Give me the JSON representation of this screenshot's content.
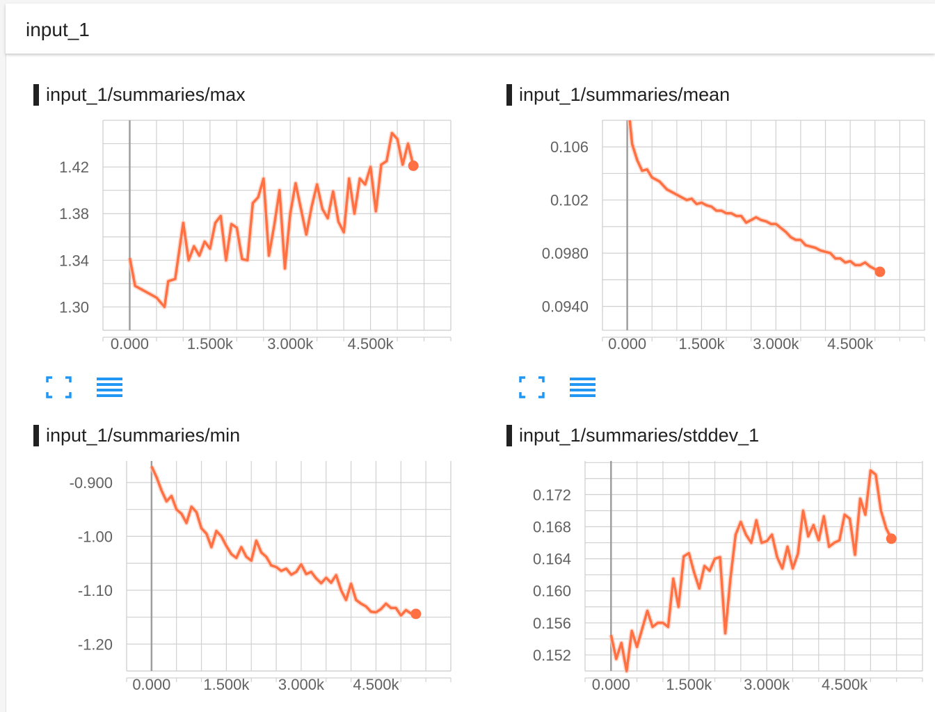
{
  "header": {
    "title": "input_1"
  },
  "colors": {
    "line": "#ff7043",
    "line_raw": "#ffccbc",
    "grid": "#d0d0d0",
    "axis": "#9e9e9e",
    "tool": "#2196f3"
  },
  "tools": {
    "fit_icon": "fit-domain-icon",
    "log_icon": "toggle-log-scale-icon"
  },
  "charts": [
    {
      "title": "input_1/summaries/max",
      "chart_data": {
        "type": "line",
        "series": [
          {
            "values": [
              [
                0,
                1.342
              ],
              [
                100,
                1.318
              ],
              [
                500,
                1.308
              ],
              [
                650,
                1.3
              ],
              [
                720,
                1.322
              ],
              [
                850,
                1.324
              ],
              [
                1000,
                1.372
              ],
              [
                1100,
                1.34
              ],
              [
                1200,
                1.352
              ],
              [
                1300,
                1.344
              ],
              [
                1400,
                1.356
              ],
              [
                1500,
                1.35
              ],
              [
                1600,
                1.372
              ],
              [
                1700,
                1.378
              ],
              [
                1800,
                1.34
              ],
              [
                1900,
                1.371
              ],
              [
                2000,
                1.368
              ],
              [
                2100,
                1.341
              ],
              [
                2200,
                1.34
              ],
              [
                2300,
                1.389
              ],
              [
                2400,
                1.394
              ],
              [
                2500,
                1.41
              ],
              [
                2600,
                1.344
              ],
              [
                2700,
                1.37
              ],
              [
                2800,
                1.4
              ],
              [
                2900,
                1.333
              ],
              [
                3000,
                1.38
              ],
              [
                3100,
                1.406
              ],
              [
                3200,
                1.384
              ],
              [
                3300,
                1.362
              ],
              [
                3400,
                1.386
              ],
              [
                3500,
                1.405
              ],
              [
                3600,
                1.384
              ],
              [
                3700,
                1.376
              ],
              [
                3800,
                1.399
              ],
              [
                3900,
                1.373
              ],
              [
                4000,
                1.364
              ],
              [
                4100,
                1.41
              ],
              [
                4200,
                1.38
              ],
              [
                4300,
                1.41
              ],
              [
                4400,
                1.405
              ],
              [
                4500,
                1.42
              ],
              [
                4600,
                1.382
              ],
              [
                4700,
                1.422
              ],
              [
                4800,
                1.425
              ],
              [
                4900,
                1.449
              ],
              [
                5000,
                1.444
              ],
              [
                5100,
                1.422
              ],
              [
                5200,
                1.44
              ],
              [
                5300,
                1.421
              ]
            ]
          }
        ],
        "xticks": [
          "0.000",
          "1.500k",
          "3.000k",
          "4.500k"
        ],
        "yticks": [
          "1.42",
          "1.38",
          "1.34",
          "1.30"
        ],
        "xlim": [
          -500,
          6000
        ],
        "ylim": [
          1.28,
          1.46
        ]
      }
    },
    {
      "title": "input_1/summaries/mean",
      "chart_data": {
        "type": "line",
        "series": [
          {
            "values": [
              [
                50,
                0.108
              ],
              [
                100,
                0.1062
              ],
              [
                200,
                0.105
              ],
              [
                300,
                0.1042
              ],
              [
                400,
                0.1043
              ],
              [
                500,
                0.1037
              ],
              [
                650,
                0.1034
              ],
              [
                800,
                0.1028
              ],
              [
                900,
                0.1026
              ],
              [
                1000,
                0.1024
              ],
              [
                1100,
                0.1022
              ],
              [
                1200,
                0.102
              ],
              [
                1300,
                0.1021
              ],
              [
                1400,
                0.1017
              ],
              [
                1500,
                0.1018
              ],
              [
                1600,
                0.1016
              ],
              [
                1700,
                0.1015
              ],
              [
                1800,
                0.1012
              ],
              [
                1900,
                0.1012
              ],
              [
                2000,
                0.101
              ],
              [
                2100,
                0.101
              ],
              [
                2200,
                0.1008
              ],
              [
                2300,
                0.1008
              ],
              [
                2400,
                0.1003
              ],
              [
                2500,
                0.1005
              ],
              [
                2600,
                0.1007
              ],
              [
                2700,
                0.1005
              ],
              [
                2800,
                0.1004
              ],
              [
                2900,
                0.1002
              ],
              [
                3000,
                0.1002
              ],
              [
                3100,
                0.0999
              ],
              [
                3200,
                0.0996
              ],
              [
                3300,
                0.0992
              ],
              [
                3400,
                0.099
              ],
              [
                3500,
                0.099
              ],
              [
                3600,
                0.0986
              ],
              [
                3700,
                0.0985
              ],
              [
                3800,
                0.0984
              ],
              [
                3900,
                0.0982
              ],
              [
                4000,
                0.0981
              ],
              [
                4100,
                0.098
              ],
              [
                4200,
                0.0976
              ],
              [
                4300,
                0.0976
              ],
              [
                4400,
                0.0973
              ],
              [
                4500,
                0.0974
              ],
              [
                4600,
                0.0971
              ],
              [
                4700,
                0.0971
              ],
              [
                4800,
                0.0973
              ],
              [
                4900,
                0.097
              ],
              [
                5000,
                0.0968
              ],
              [
                5100,
                0.0966
              ]
            ]
          }
        ],
        "xticks": [
          "0.000",
          "1.500k",
          "3.000k",
          "4.500k"
        ],
        "yticks": [
          "0.106",
          "0.102",
          "0.0980",
          "0.0940"
        ],
        "xlim": [
          -500,
          6000
        ],
        "ylim": [
          0.0922,
          0.108
        ]
      }
    },
    {
      "title": "input_1/summaries/min",
      "chart_data": {
        "type": "line",
        "series": [
          {
            "values": [
              [
                0,
                -0.87
              ],
              [
                100,
                -0.89
              ],
              [
                200,
                -0.915
              ],
              [
                300,
                -0.935
              ],
              [
                400,
                -0.925
              ],
              [
                500,
                -0.95
              ],
              [
                600,
                -0.958
              ],
              [
                700,
                -0.975
              ],
              [
                800,
                -0.945
              ],
              [
                900,
                -0.955
              ],
              [
                1000,
                -0.985
              ],
              [
                1100,
                -0.995
              ],
              [
                1200,
                -1.02
              ],
              [
                1300,
                -0.99
              ],
              [
                1400,
                -1.0
              ],
              [
                1500,
                -1.018
              ],
              [
                1600,
                -1.033
              ],
              [
                1700,
                -1.04
              ],
              [
                1800,
                -1.02
              ],
              [
                1900,
                -1.038
              ],
              [
                2000,
                -1.045
              ],
              [
                2100,
                -1.008
              ],
              [
                2200,
                -1.03
              ],
              [
                2300,
                -1.038
              ],
              [
                2400,
                -1.054
              ],
              [
                2500,
                -1.057
              ],
              [
                2600,
                -1.064
              ],
              [
                2700,
                -1.06
              ],
              [
                2800,
                -1.071
              ],
              [
                2900,
                -1.066
              ],
              [
                3000,
                -1.052
              ],
              [
                3100,
                -1.07
              ],
              [
                3200,
                -1.066
              ],
              [
                3300,
                -1.078
              ],
              [
                3400,
                -1.087
              ],
              [
                3500,
                -1.077
              ],
              [
                3600,
                -1.086
              ],
              [
                3700,
                -1.072
              ],
              [
                3800,
                -1.1
              ],
              [
                3900,
                -1.118
              ],
              [
                4000,
                -1.088
              ],
              [
                4100,
                -1.118
              ],
              [
                4200,
                -1.125
              ],
              [
                4300,
                -1.13
              ],
              [
                4400,
                -1.14
              ],
              [
                4500,
                -1.141
              ],
              [
                4600,
                -1.135
              ],
              [
                4700,
                -1.125
              ],
              [
                4800,
                -1.133
              ],
              [
                4900,
                -1.133
              ],
              [
                5000,
                -1.147
              ],
              [
                5100,
                -1.137
              ],
              [
                5200,
                -1.143
              ],
              [
                5300,
                -1.144
              ]
            ]
          }
        ],
        "xticks": [
          "0.000",
          "1.500k",
          "3.000k",
          "4.500k"
        ],
        "yticks": [
          "-0.900",
          "-1.00",
          "-1.10",
          "-1.20"
        ],
        "xlim": [
          -500,
          6000
        ],
        "ylim": [
          -1.25,
          -0.86
        ]
      }
    },
    {
      "title": "input_1/summaries/stddev_1",
      "chart_data": {
        "type": "line",
        "series": [
          {
            "values": [
              [
                0,
                0.1545
              ],
              [
                100,
                0.1515
              ],
              [
                200,
                0.1535
              ],
              [
                300,
                0.15
              ],
              [
                400,
                0.155
              ],
              [
                500,
                0.153
              ],
              [
                700,
                0.1575
              ],
              [
                800,
                0.1555
              ],
              [
                900,
                0.156
              ],
              [
                1000,
                0.156
              ],
              [
                1100,
                0.1555
              ],
              [
                1200,
                0.1615
              ],
              [
                1300,
                0.158
              ],
              [
                1400,
                0.1643
              ],
              [
                1500,
                0.1647
              ],
              [
                1600,
                0.1623
              ],
              [
                1700,
                0.1603
              ],
              [
                1800,
                0.1631
              ],
              [
                1900,
                0.1625
              ],
              [
                2000,
                0.164
              ],
              [
                2100,
                0.1642
              ],
              [
                2200,
                0.1547
              ],
              [
                2300,
                0.1615
              ],
              [
                2400,
                0.167
              ],
              [
                2500,
                0.1686
              ],
              [
                2600,
                0.167
              ],
              [
                2700,
                0.166
              ],
              [
                2800,
                0.1688
              ],
              [
                2900,
                0.166
              ],
              [
                3000,
                0.1662
              ],
              [
                3100,
                0.167
              ],
              [
                3200,
                0.1642
              ],
              [
                3300,
                0.1628
              ],
              [
                3400,
                0.1655
              ],
              [
                3500,
                0.1628
              ],
              [
                3600,
                0.1646
              ],
              [
                3700,
                0.17
              ],
              [
                3800,
                0.1668
              ],
              [
                3900,
                0.1682
              ],
              [
                4000,
                0.1663
              ],
              [
                4100,
                0.1693
              ],
              [
                4200,
                0.1655
              ],
              [
                4300,
                0.166
              ],
              [
                4400,
                0.1663
              ],
              [
                4500,
                0.1695
              ],
              [
                4600,
                0.169
              ],
              [
                4700,
                0.1645
              ],
              [
                4800,
                0.1715
              ],
              [
                4900,
                0.1695
              ],
              [
                5000,
                0.175
              ],
              [
                5100,
                0.1745
              ],
              [
                5200,
                0.17
              ],
              [
                5300,
                0.1678
              ],
              [
                5400,
                0.1665
              ]
            ]
          }
        ],
        "xticks": [
          "0.000",
          "1.500k",
          "3.000k",
          "4.500k"
        ],
        "yticks": [
          "0.172",
          "0.168",
          "0.164",
          "0.160",
          "0.156",
          "0.152"
        ],
        "xlim": [
          -500,
          6000
        ],
        "ylim": [
          0.15,
          0.1762
        ]
      }
    }
  ]
}
